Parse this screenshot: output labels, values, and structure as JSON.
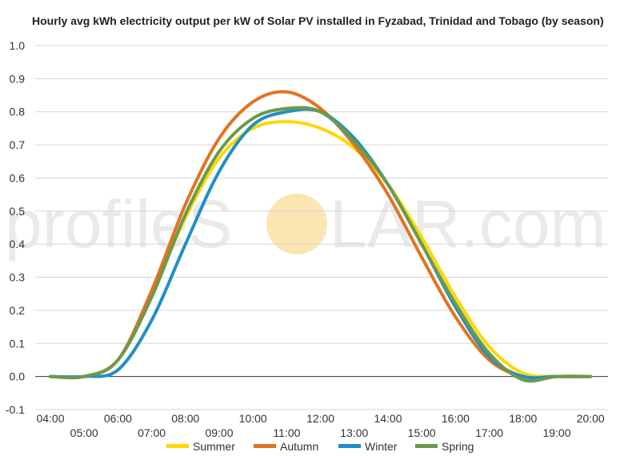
{
  "chart_data": {
    "type": "line",
    "title": "Hourly avg kWh electricity output per kW of Solar PV installed in Fyzabad, Trinidad and Tobago (by season)",
    "xlabel": "",
    "ylabel": "",
    "ylim": [
      -0.1,
      1.0
    ],
    "yticks": [
      "1.0",
      "0.9",
      "0.8",
      "0.7",
      "0.6",
      "0.5",
      "0.4",
      "0.3",
      "0.2",
      "0.1",
      "0.0",
      "-0.1"
    ],
    "x": [
      "04:00",
      "05:00",
      "06:00",
      "07:00",
      "08:00",
      "09:00",
      "10:00",
      "11:00",
      "12:00",
      "13:00",
      "14:00",
      "15:00",
      "16:00",
      "17:00",
      "18:00",
      "19:00",
      "20:00"
    ],
    "grid": true,
    "legend_position": "bottom",
    "series": [
      {
        "name": "Summer",
        "color": "#ffd700",
        "values": [
          0.0,
          0.0,
          0.05,
          0.25,
          0.48,
          0.66,
          0.75,
          0.77,
          0.75,
          0.69,
          0.58,
          0.42,
          0.24,
          0.09,
          0.01,
          0.0,
          0.0
        ]
      },
      {
        "name": "Autumn",
        "color": "#e3731f",
        "values": [
          0.0,
          0.0,
          0.05,
          0.26,
          0.52,
          0.72,
          0.83,
          0.86,
          0.81,
          0.7,
          0.55,
          0.36,
          0.18,
          0.05,
          0.0,
          0.0,
          0.0
        ]
      },
      {
        "name": "Winter",
        "color": "#1e90c8",
        "values": [
          0.0,
          0.0,
          0.02,
          0.17,
          0.4,
          0.62,
          0.76,
          0.8,
          0.8,
          0.72,
          0.58,
          0.4,
          0.21,
          0.06,
          0.0,
          0.0,
          0.0
        ]
      },
      {
        "name": "Spring",
        "color": "#6b9a4b",
        "values": [
          0.0,
          0.0,
          0.05,
          0.24,
          0.49,
          0.68,
          0.78,
          0.81,
          0.8,
          0.71,
          0.58,
          0.4,
          0.22,
          0.07,
          -0.01,
          0.0,
          0.0
        ]
      }
    ]
  },
  "watermark": {
    "text_left": "profileS",
    "text_right": "LAR.com",
    "sun_color": "#fbe5b0"
  }
}
